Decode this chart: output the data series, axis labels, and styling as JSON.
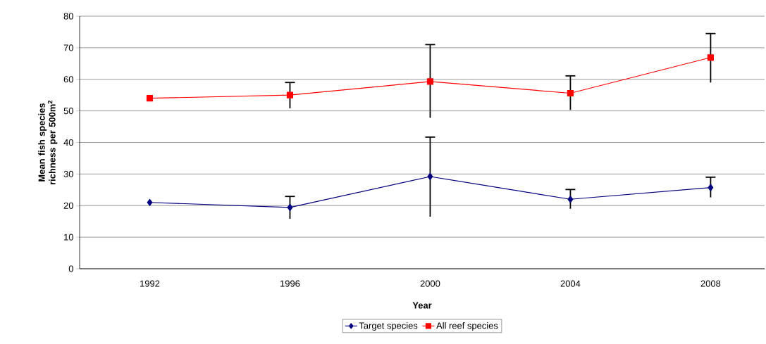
{
  "chart_data": {
    "type": "line",
    "xlabel": "Year",
    "ylabel": "Mean fish species richness per 500m$^{2}$",
    "categories": [
      "1992",
      "1996",
      "2000",
      "2004",
      "2008"
    ],
    "series": [
      {
        "name": "Target species",
        "color": "#000080",
        "marker": "diamond",
        "values": [
          21.0,
          19.4,
          29.2,
          22.0,
          25.7
        ],
        "errors": [
          null,
          [
            15.8,
            22.9
          ],
          [
            16.5,
            41.7
          ],
          [
            19.0,
            25.1
          ],
          [
            22.6,
            29.0
          ]
        ]
      },
      {
        "name": "All reef species",
        "color": "#ff0000",
        "marker": "square",
        "values": [
          54.0,
          55.0,
          59.3,
          55.6,
          66.9
        ],
        "errors": [
          null,
          [
            50.8,
            59.0
          ],
          [
            47.8,
            71.0
          ],
          [
            50.3,
            61.1
          ],
          [
            59.0,
            74.5
          ]
        ]
      }
    ],
    "ylim": [
      0,
      80
    ],
    "yticks": [
      0,
      10,
      20,
      30,
      40,
      50,
      60,
      70,
      80
    ],
    "grid": "y",
    "legend": "bottom",
    "line_style": "solid"
  }
}
